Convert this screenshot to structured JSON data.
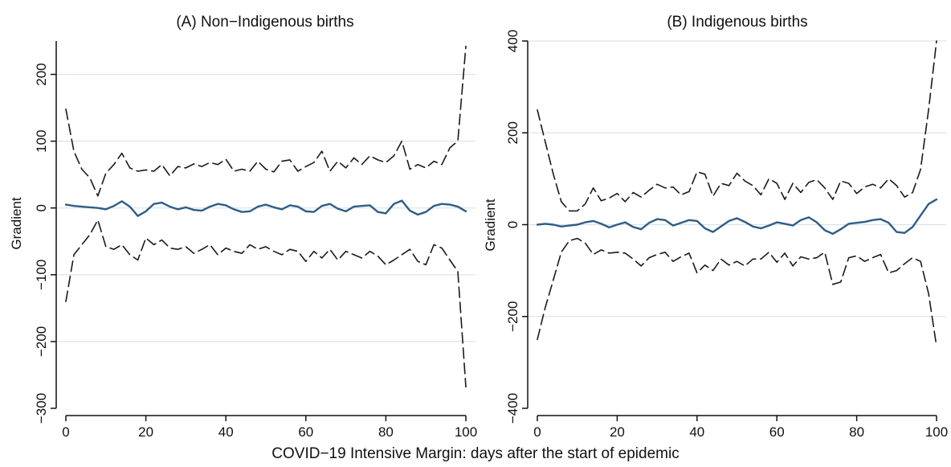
{
  "figure": {
    "xlabel": "COVID−19 Intensive Margin: days after the start of epidemic"
  },
  "colors": {
    "estimate_line": "#2f5d86",
    "ci_line": "#1a1a1a",
    "grid": "#d9e4ec",
    "axis": "#111111"
  },
  "chart_data": [
    {
      "type": "line",
      "title": "(A) Non−Indigenous births",
      "ylabel": "Gradient",
      "xlim": [
        0,
        100
      ],
      "ylim": [
        -300,
        250
      ],
      "xticks": [
        0,
        20,
        40,
        60,
        80,
        100
      ],
      "yticks": [
        -300,
        -200,
        -100,
        0,
        100,
        200
      ],
      "grid": true,
      "series": [
        {
          "role": "estimate",
          "style": "solid",
          "x": [
            0,
            2,
            4,
            6,
            8,
            10,
            12,
            14,
            16,
            18,
            20,
            22,
            24,
            26,
            28,
            30,
            32,
            34,
            36,
            38,
            40,
            42,
            44,
            46,
            48,
            50,
            52,
            54,
            56,
            58,
            60,
            62,
            64,
            66,
            68,
            70,
            72,
            74,
            76,
            78,
            80,
            82,
            84,
            86,
            88,
            90,
            92,
            94,
            96,
            98,
            100
          ],
          "y": [
            5,
            3,
            2,
            1,
            0,
            -2,
            3,
            10,
            2,
            -12,
            -5,
            6,
            8,
            2,
            -2,
            1,
            -3,
            -4,
            2,
            6,
            4,
            -2,
            -6,
            -5,
            2,
            5,
            1,
            -2,
            4,
            2,
            -5,
            -6,
            3,
            6,
            -1,
            -5,
            2,
            3,
            4,
            -6,
            -8,
            6,
            11,
            -4,
            -10,
            -6,
            3,
            6,
            5,
            2,
            -5
          ]
        },
        {
          "role": "upper-ci",
          "style": "dashed",
          "x": [
            0,
            2,
            4,
            6,
            8,
            10,
            12,
            14,
            16,
            18,
            20,
            22,
            24,
            26,
            28,
            30,
            32,
            34,
            36,
            38,
            40,
            42,
            44,
            46,
            48,
            50,
            52,
            54,
            56,
            58,
            60,
            62,
            64,
            66,
            68,
            70,
            72,
            74,
            76,
            78,
            80,
            82,
            84,
            86,
            88,
            90,
            92,
            94,
            96,
            98,
            100
          ],
          "y": [
            148,
            85,
            58,
            45,
            18,
            52,
            65,
            82,
            60,
            55,
            57,
            55,
            65,
            48,
            62,
            60,
            66,
            62,
            68,
            65,
            73,
            55,
            58,
            55,
            70,
            58,
            54,
            70,
            72,
            55,
            62,
            68,
            85,
            55,
            70,
            60,
            75,
            65,
            78,
            72,
            68,
            78,
            100,
            58,
            65,
            60,
            70,
            65,
            90,
            100,
            242
          ]
        },
        {
          "role": "lower-ci",
          "style": "dashed",
          "x": [
            0,
            2,
            4,
            6,
            8,
            10,
            12,
            14,
            16,
            18,
            20,
            22,
            24,
            26,
            28,
            30,
            32,
            34,
            36,
            38,
            40,
            42,
            44,
            46,
            48,
            50,
            52,
            54,
            56,
            58,
            60,
            62,
            64,
            66,
            68,
            70,
            72,
            74,
            76,
            78,
            80,
            82,
            84,
            86,
            88,
            90,
            92,
            94,
            96,
            98,
            100
          ],
          "y": [
            -140,
            -70,
            -55,
            -40,
            -18,
            -58,
            -62,
            -55,
            -70,
            -78,
            -45,
            -55,
            -48,
            -60,
            -62,
            -58,
            -68,
            -62,
            -55,
            -70,
            -60,
            -65,
            -68,
            -55,
            -62,
            -58,
            -65,
            -70,
            -62,
            -65,
            -80,
            -65,
            -75,
            -62,
            -78,
            -65,
            -70,
            -75,
            -65,
            -72,
            -85,
            -78,
            -70,
            -62,
            -80,
            -85,
            -55,
            -60,
            -78,
            -95,
            -268
          ]
        }
      ]
    },
    {
      "type": "line",
      "title": "(B) Indigenous births",
      "ylabel": "Gradient",
      "xlim": [
        0,
        100
      ],
      "ylim": [
        -400,
        400
      ],
      "xticks": [
        0,
        20,
        40,
        60,
        80,
        100
      ],
      "yticks": [
        -400,
        -200,
        0,
        200,
        400
      ],
      "grid": true,
      "series": [
        {
          "role": "estimate",
          "style": "solid",
          "x": [
            0,
            2,
            4,
            6,
            8,
            10,
            12,
            14,
            16,
            18,
            20,
            22,
            24,
            26,
            28,
            30,
            32,
            34,
            36,
            38,
            40,
            42,
            44,
            46,
            48,
            50,
            52,
            54,
            56,
            58,
            60,
            62,
            64,
            66,
            68,
            70,
            72,
            74,
            76,
            78,
            80,
            82,
            84,
            86,
            88,
            90,
            92,
            94,
            96,
            98,
            100
          ],
          "y": [
            0,
            2,
            0,
            -4,
            -2,
            0,
            5,
            8,
            2,
            -6,
            0,
            5,
            -5,
            -10,
            4,
            12,
            10,
            -2,
            4,
            10,
            8,
            -8,
            -16,
            -4,
            8,
            14,
            6,
            -4,
            -8,
            -2,
            5,
            2,
            -2,
            10,
            16,
            5,
            -12,
            -20,
            -10,
            2,
            4,
            6,
            10,
            12,
            4,
            -16,
            -18,
            -5,
            20,
            45,
            55
          ]
        },
        {
          "role": "upper-ci",
          "style": "dashed",
          "x": [
            0,
            2,
            4,
            6,
            8,
            10,
            12,
            14,
            16,
            18,
            20,
            22,
            24,
            26,
            28,
            30,
            32,
            34,
            36,
            38,
            40,
            42,
            44,
            46,
            48,
            50,
            52,
            54,
            56,
            58,
            60,
            62,
            64,
            66,
            68,
            70,
            72,
            74,
            76,
            78,
            80,
            82,
            84,
            86,
            88,
            90,
            92,
            94,
            96,
            98,
            100
          ],
          "y": [
            250,
            180,
            110,
            50,
            30,
            30,
            45,
            80,
            52,
            58,
            68,
            50,
            70,
            60,
            75,
            88,
            80,
            82,
            65,
            72,
            115,
            110,
            62,
            90,
            85,
            112,
            95,
            85,
            65,
            100,
            90,
            55,
            90,
            70,
            92,
            98,
            80,
            55,
            95,
            90,
            68,
            82,
            88,
            80,
            100,
            85,
            60,
            70,
            120,
            250,
            400
          ]
        },
        {
          "role": "lower-ci",
          "style": "dashed",
          "x": [
            0,
            2,
            4,
            6,
            8,
            10,
            12,
            14,
            16,
            18,
            20,
            22,
            24,
            26,
            28,
            30,
            32,
            34,
            36,
            38,
            40,
            42,
            44,
            46,
            48,
            50,
            52,
            54,
            56,
            58,
            60,
            62,
            64,
            66,
            68,
            70,
            72,
            74,
            76,
            78,
            80,
            82,
            84,
            86,
            88,
            90,
            92,
            94,
            96,
            98,
            100
          ],
          "y": [
            -250,
            -180,
            -120,
            -60,
            -35,
            -30,
            -40,
            -65,
            -55,
            -62,
            -60,
            -62,
            -75,
            -90,
            -72,
            -65,
            -60,
            -80,
            -70,
            -62,
            -105,
            -88,
            -100,
            -75,
            -88,
            -80,
            -90,
            -75,
            -75,
            -60,
            -82,
            -62,
            -90,
            -70,
            -75,
            -72,
            -60,
            -130,
            -125,
            -72,
            -68,
            -80,
            -72,
            -65,
            -105,
            -100,
            -85,
            -72,
            -80,
            -150,
            -265
          ]
        }
      ]
    }
  ]
}
